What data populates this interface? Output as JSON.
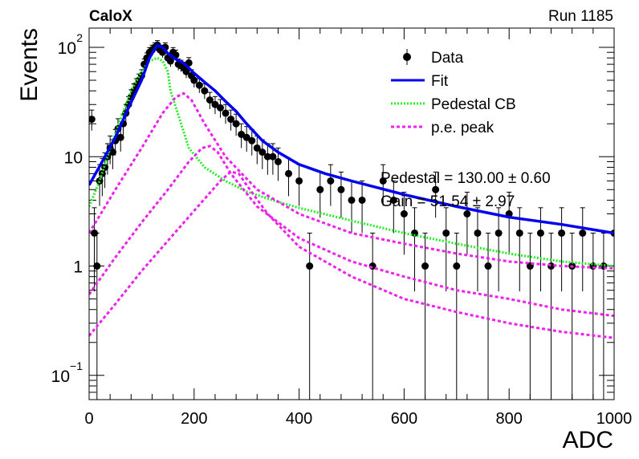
{
  "header": {
    "left": "CaloX",
    "right": "Run 1185"
  },
  "chart_data": {
    "type": "scatter",
    "xlabel": "ADC",
    "ylabel": "Events",
    "xlim": [
      0,
      1000
    ],
    "ylim": [
      0.06,
      150
    ],
    "yscale": "log",
    "x_ticks": [
      "0",
      "200",
      "400",
      "600",
      "800",
      "1000"
    ],
    "y_ticks": [
      {
        "base": "10",
        "exp": "−1",
        "value": 0.1
      },
      {
        "base": "1",
        "exp": "",
        "value": 1
      },
      {
        "base": "10",
        "exp": "",
        "value": 10
      },
      {
        "base": "10",
        "exp": "2",
        "value": 100
      }
    ],
    "legend": {
      "position": "top-right",
      "entries": [
        {
          "label": "Data",
          "style": "marker",
          "color": "#000000"
        },
        {
          "label": "Fit",
          "style": "solid",
          "color": "#0000ee"
        },
        {
          "label": "Pedestal CB",
          "style": "dotted",
          "color": "#22ee22"
        },
        {
          "label": "p.e. peak",
          "style": "dashed",
          "color": "#ee22ee"
        }
      ]
    },
    "annotations": [
      "Pedestal = 130.00 ± 0.60",
      "Gain = 51.54 ± 2.97"
    ],
    "data_points": {
      "x": [
        5,
        10,
        15,
        20,
        25,
        30,
        35,
        40,
        45,
        50,
        55,
        60,
        65,
        70,
        75,
        80,
        85,
        90,
        95,
        100,
        105,
        110,
        115,
        120,
        125,
        130,
        135,
        140,
        145,
        150,
        155,
        160,
        165,
        170,
        175,
        180,
        185,
        190,
        195,
        200,
        210,
        220,
        230,
        240,
        250,
        260,
        270,
        280,
        290,
        300,
        310,
        320,
        330,
        340,
        350,
        360,
        380,
        400,
        420,
        440,
        460,
        480,
        500,
        520,
        540,
        560,
        580,
        600,
        620,
        640,
        660,
        680,
        700,
        720,
        740,
        760,
        780,
        800,
        820,
        840,
        860,
        880,
        900,
        920,
        940,
        960,
        980,
        1000
      ],
      "y": [
        22,
        2,
        1,
        6,
        7,
        8,
        10,
        12,
        11,
        14,
        18,
        15,
        20,
        25,
        30,
        35,
        40,
        45,
        50,
        55,
        70,
        80,
        90,
        95,
        100,
        105,
        95,
        90,
        100,
        80,
        75,
        90,
        85,
        70,
        68,
        65,
        60,
        72,
        55,
        50,
        45,
        40,
        33,
        30,
        28,
        25,
        22,
        20,
        16,
        15,
        14,
        12,
        11,
        10,
        10,
        9,
        7,
        6,
        1,
        5,
        6,
        5,
        4,
        4,
        1,
        6,
        4,
        3,
        2,
        1,
        5,
        2,
        1,
        3,
        2,
        1,
        2,
        3,
        2,
        1,
        2,
        1,
        2,
        1,
        2,
        1,
        1,
        2
      ]
    },
    "fit": {
      "x": [
        0,
        25,
        50,
        75,
        100,
        115,
        130,
        140,
        150,
        165,
        180,
        200,
        220,
        240,
        260,
        280,
        300,
        330,
        360,
        400,
        450,
        500,
        600,
        700,
        800,
        900,
        1000
      ],
      "y": [
        5.5,
        9,
        15,
        28,
        50,
        80,
        105,
        100,
        88,
        78,
        72,
        58,
        48,
        40,
        32,
        26,
        20,
        14,
        11,
        8.5,
        7,
        6,
        4.5,
        3.5,
        2.8,
        2.4,
        2.0
      ]
    },
    "pedestal_cb": {
      "x": [
        0,
        20,
        40,
        60,
        80,
        100,
        115,
        130,
        140,
        150,
        155,
        190,
        220,
        260,
        300,
        350,
        400,
        500,
        600,
        700,
        800,
        900,
        1000
      ],
      "y": [
        3.5,
        6,
        12,
        22,
        40,
        60,
        75,
        80,
        75,
        60,
        40,
        12,
        8,
        6,
        4.8,
        4,
        3.4,
        2.6,
        2,
        1.6,
        1.3,
        1.1,
        1.0
      ]
    },
    "pe_peaks": [
      {
        "x": [
          0,
          50,
          100,
          140,
          165,
          180,
          195,
          220,
          260,
          320,
          400,
          500,
          600,
          700,
          800,
          900,
          1000
        ],
        "y": [
          2.0,
          5,
          12,
          25,
          35,
          38,
          33,
          20,
          10,
          5,
          3,
          2,
          1.6,
          1.3,
          1.1,
          1.0,
          0.95
        ]
      },
      {
        "x": [
          0,
          50,
          100,
          150,
          190,
          215,
          230,
          245,
          270,
          320,
          400,
          500,
          600,
          700,
          800,
          900,
          1000
        ],
        "y": [
          0.55,
          1.2,
          2.5,
          5,
          9,
          12,
          12.5,
          11,
          7,
          3.5,
          1.8,
          1.1,
          0.8,
          0.6,
          0.5,
          0.4,
          0.35
        ]
      },
      {
        "x": [
          0,
          50,
          100,
          150,
          200,
          250,
          270,
          285,
          300,
          340,
          400,
          500,
          600,
          700,
          800,
          900,
          1000
        ],
        "y": [
          0.23,
          0.45,
          0.9,
          1.7,
          3.2,
          6,
          7.3,
          7,
          5.5,
          3,
          1.5,
          0.8,
          0.5,
          0.38,
          0.3,
          0.25,
          0.22
        ]
      }
    ]
  }
}
